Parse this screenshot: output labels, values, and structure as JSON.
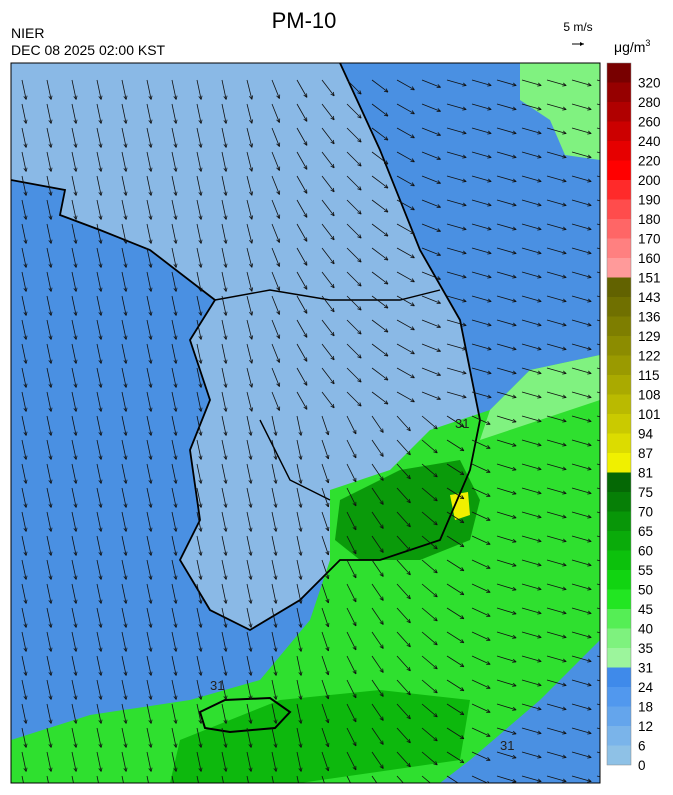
{
  "header": {
    "title": "PM-10",
    "source": "NIER",
    "datetime": "DEC 08 2025 02:00 KST",
    "wind_scale": "5 m/s",
    "unit": "μg/m",
    "unit_exponent": "3"
  },
  "contour_labels": [
    "31",
    "31",
    "31"
  ],
  "legend": {
    "items": [
      {
        "value": 0,
        "color": "#8ec1e6"
      },
      {
        "value": 6,
        "color": "#7ab4ea"
      },
      {
        "value": 12,
        "color": "#64a5ec"
      },
      {
        "value": 18,
        "color": "#5198ee"
      },
      {
        "value": 24,
        "color": "#3f8aea"
      },
      {
        "value": 31,
        "color": "#9cf59c"
      },
      {
        "value": 35,
        "color": "#7ef27e"
      },
      {
        "value": 40,
        "color": "#55ee55"
      },
      {
        "value": 45,
        "color": "#22e622"
      },
      {
        "value": 50,
        "color": "#11d411"
      },
      {
        "value": 55,
        "color": "#0cc10c"
      },
      {
        "value": 60,
        "color": "#0aab0a"
      },
      {
        "value": 65,
        "color": "#089608"
      },
      {
        "value": 70,
        "color": "#067f06"
      },
      {
        "value": 75,
        "color": "#056805"
      },
      {
        "value": 81,
        "color": "#f0f000"
      },
      {
        "value": 87,
        "color": "#dcdc00"
      },
      {
        "value": 94,
        "color": "#caca00"
      },
      {
        "value": 101,
        "color": "#baba00"
      },
      {
        "value": 108,
        "color": "#aaaa00"
      },
      {
        "value": 115,
        "color": "#9a9a00"
      },
      {
        "value": 122,
        "color": "#8c8c00"
      },
      {
        "value": 129,
        "color": "#7e7e00"
      },
      {
        "value": 136,
        "color": "#707000"
      },
      {
        "value": 143,
        "color": "#626200"
      },
      {
        "value": 151,
        "color": "#ff9a9a"
      },
      {
        "value": 160,
        "color": "#ff8080"
      },
      {
        "value": 170,
        "color": "#ff6666"
      },
      {
        "value": 180,
        "color": "#ff4c4c"
      },
      {
        "value": 190,
        "color": "#ff2a2a"
      },
      {
        "value": 200,
        "color": "#ff0000"
      },
      {
        "value": 220,
        "color": "#e60000"
      },
      {
        "value": 240,
        "color": "#cc0000"
      },
      {
        "value": 260,
        "color": "#b00000"
      },
      {
        "value": 280,
        "color": "#960000"
      },
      {
        "value": 320,
        "color": "#780000"
      }
    ]
  }
}
